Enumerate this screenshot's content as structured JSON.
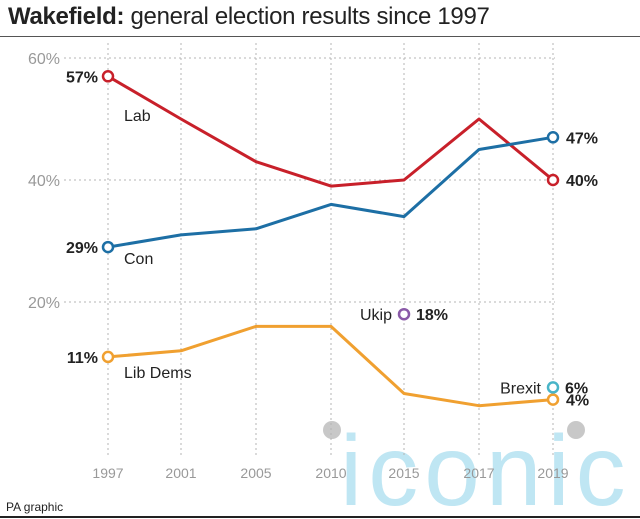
{
  "title_bold": "Wakefield:",
  "title_rest": " general election results since 1997",
  "credit": "PA graphic",
  "watermark": "iconic",
  "chart_data": {
    "type": "line",
    "x": [
      1997,
      2001,
      2005,
      2010,
      2015,
      2017,
      2019
    ],
    "xticks": [
      "1997",
      "2001",
      "2005",
      "2010",
      "2015",
      "2017",
      "2019"
    ],
    "yticks": [
      "20%",
      "40%",
      "60%"
    ],
    "ylim": [
      0,
      60
    ],
    "series": [
      {
        "name": "Lab",
        "color": "#c8202a",
        "values": [
          57,
          50,
          43,
          39,
          40,
          50,
          40
        ],
        "start_label": "57%",
        "end_label": "40%"
      },
      {
        "name": "Con",
        "color": "#1d6fa5",
        "values": [
          29,
          31,
          32,
          36,
          34,
          45,
          47
        ],
        "start_label": "29%",
        "end_label": "47%"
      },
      {
        "name": "Lib Dems",
        "color": "#f0a030",
        "values": [
          11,
          12,
          16,
          16,
          5,
          3,
          4
        ],
        "start_label": "11%",
        "end_label": "4%"
      }
    ],
    "points": [
      {
        "name": "Ukip",
        "x": 2015,
        "y": 18,
        "color": "#8a5aa8",
        "label": "18%"
      },
      {
        "name": "Brexit",
        "x": 2019,
        "y": 6,
        "color": "#49b5c8",
        "label": "6%"
      }
    ]
  }
}
